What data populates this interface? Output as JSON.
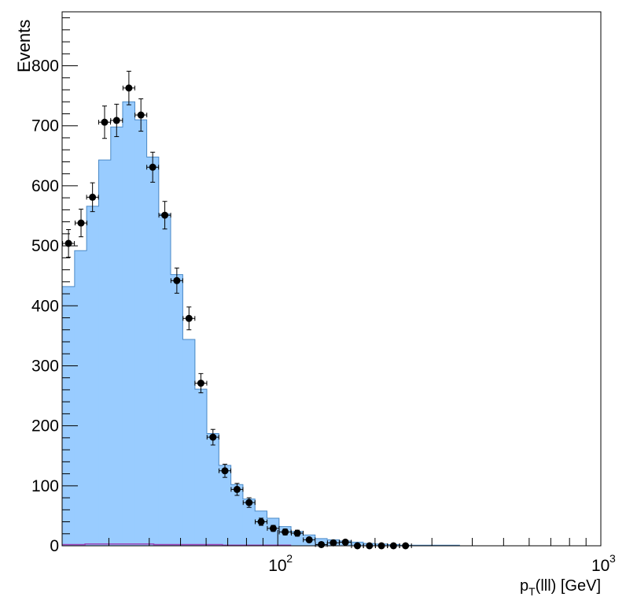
{
  "colors": {
    "mc_fill": "#99ccff",
    "mc_line": "#4a89c6",
    "data_marker": "#000000",
    "axis": "#000000",
    "frame": "#000000",
    "minor_bkg": "#9b3fb5"
  },
  "chart_data": {
    "type": "bar",
    "xscale": "log",
    "xlabel": "p_T(lll) [GeV]",
    "ylabel": "Events",
    "xlim": [
      21.5,
      1000
    ],
    "ylim": [
      0,
      890
    ],
    "grid": false,
    "legend": "none",
    "x_ticks": [
      {
        "value": 100,
        "label": "10",
        "exponent": "2"
      },
      {
        "value": 1000,
        "label": "10",
        "exponent": "3"
      }
    ],
    "y_ticks": [
      {
        "value": 0,
        "label": "0"
      },
      {
        "value": 100,
        "label": "100"
      },
      {
        "value": 200,
        "label": "200"
      },
      {
        "value": 300,
        "label": "300"
      },
      {
        "value": 400,
        "label": "400"
      },
      {
        "value": 500,
        "label": "500"
      },
      {
        "value": 600,
        "label": "600"
      },
      {
        "value": 700,
        "label": "700"
      },
      {
        "value": 800,
        "label": "800"
      }
    ],
    "mc_histogram": {
      "bin_edges": [
        21.5,
        23.5,
        25.6,
        27.9,
        30.4,
        33.1,
        36.1,
        39.3,
        42.8,
        46.6,
        50.8,
        55.4,
        60.3,
        65.7,
        71.6,
        78,
        85,
        92.6,
        100.9,
        109.9,
        119.8,
        130.5,
        142.2,
        154.9,
        168.8,
        183.9,
        200.4,
        218.3,
        237.9,
        259.2,
        282.4,
        307.7,
        335.2,
        365.2,
        397.9,
        433.6,
        472.4,
        514.7
      ],
      "values": [
        432,
        492,
        566,
        643,
        698,
        740,
        710,
        648,
        553,
        452,
        344,
        261,
        187,
        134,
        102,
        78,
        58,
        46,
        32,
        24,
        18,
        12,
        10,
        8,
        6,
        4,
        3,
        2,
        1,
        1,
        1,
        1,
        1,
        0,
        0,
        0,
        0
      ]
    },
    "data_points": {
      "x": [
        22.5,
        24.6,
        26.7,
        29.1,
        31.7,
        34.6,
        37.7,
        41.0,
        44.7,
        48.7,
        53.1,
        57.8,
        63.0,
        68.6,
        74.8,
        81.5,
        88.8,
        96.8,
        105.4,
        114.9,
        125.1,
        136.4,
        148.6,
        161.9,
        176.4,
        192.2,
        209.4,
        228.1,
        248.6
      ],
      "y": [
        504,
        538,
        581,
        706,
        709,
        763,
        718,
        631,
        551,
        442,
        379,
        271,
        181,
        125,
        94,
        72,
        40,
        29,
        23,
        21,
        10,
        2,
        5,
        6,
        0,
        0,
        0,
        0,
        0
      ],
      "y_err": [
        23,
        23,
        24,
        27,
        27,
        28,
        27,
        25,
        23,
        21,
        19,
        16,
        13,
        11,
        10,
        8,
        6,
        5,
        5,
        5,
        3,
        1,
        2,
        2,
        0,
        0,
        0,
        0,
        0
      ]
    },
    "minor_background": {
      "x_range": [
        21.5,
        110
      ],
      "values": [
        2,
        3,
        3,
        3,
        2,
        2,
        2,
        1,
        1,
        1
      ]
    }
  }
}
